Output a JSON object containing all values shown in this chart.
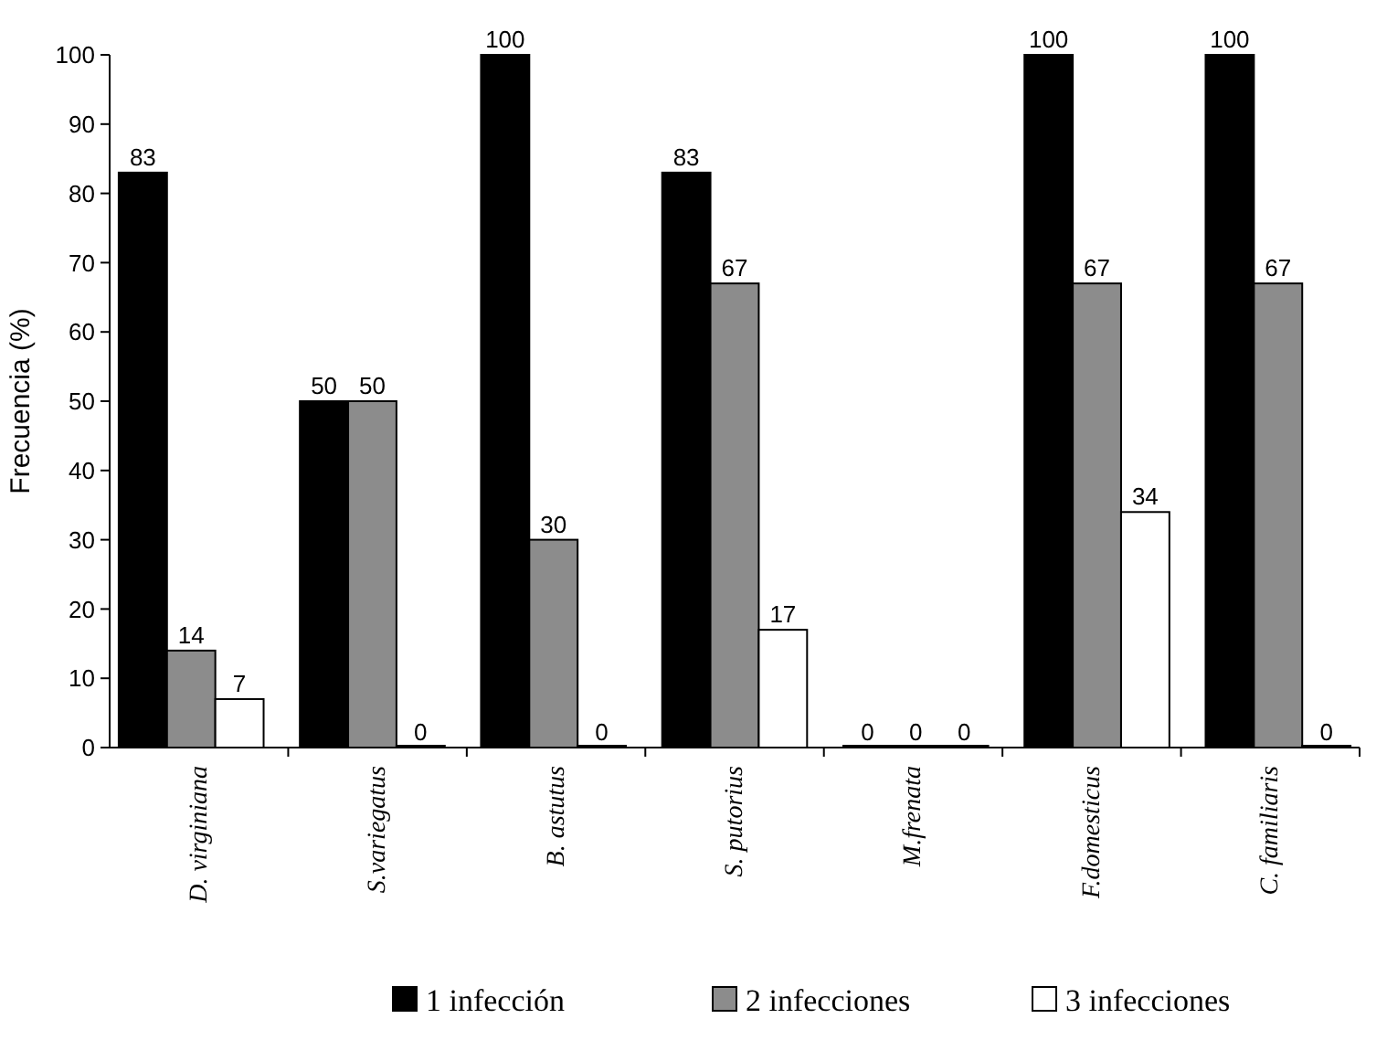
{
  "chart_data": {
    "type": "bar",
    "ylabel": "Frecuencia (%)",
    "categories": [
      "D. virginiana",
      "S.variegatus",
      "B. astutus",
      "S. putorius",
      "M.frenata",
      "F.domesticus",
      "C. familiaris"
    ],
    "series": [
      {
        "name": "1 infección",
        "color": "#000000",
        "values": [
          83,
          50,
          100,
          83,
          0,
          100,
          100
        ]
      },
      {
        "name": "2 infecciones",
        "color": "#8c8c8c",
        "values": [
          14,
          50,
          30,
          67,
          0,
          67,
          67
        ]
      },
      {
        "name": "3 infecciones",
        "color": "#ffffff",
        "values": [
          7,
          0,
          0,
          17,
          0,
          34,
          0
        ]
      }
    ],
    "ylim": [
      0,
      100
    ],
    "yticks": [
      0,
      10,
      20,
      30,
      40,
      50,
      60,
      70,
      80,
      90,
      100
    ],
    "grid": false,
    "legend": "bottom",
    "data_labels": true
  }
}
